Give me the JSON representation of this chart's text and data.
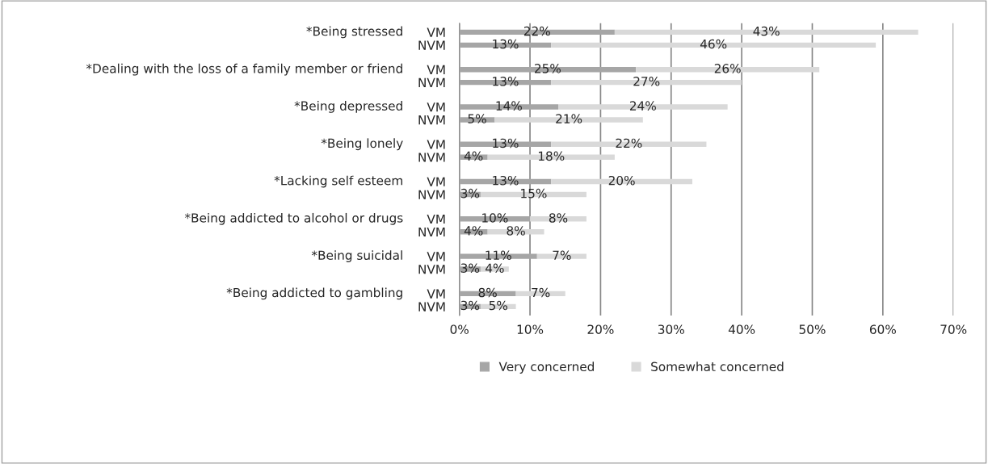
{
  "chart_data": {
    "type": "bar",
    "orientation": "horizontal",
    "stacked": true,
    "categories": [
      "VM",
      "NVM",
      "VM",
      "NVM",
      "VM",
      "NVM",
      "VM",
      "NVM",
      "VM",
      "NVM",
      "VM",
      "NVM",
      "VM",
      "NVM",
      "VM",
      "NVM"
    ],
    "series": [
      {
        "name": "Very concerned",
        "color": "#a6a6a6",
        "values": [
          22,
          13,
          25,
          13,
          14,
          5,
          13,
          4,
          13,
          3,
          10,
          4,
          11,
          3,
          8,
          3
        ],
        "value_labels": [
          "22%",
          "13%",
          "25%",
          "13%",
          "14%",
          "5%",
          "13%",
          "4%",
          "13%",
          "3%",
          "10%",
          "4%",
          "11%",
          "3%",
          "8%",
          "3%"
        ]
      },
      {
        "name": "Somewhat concerned",
        "color": "#d9d9d9",
        "values": [
          43,
          46,
          26,
          27,
          24,
          21,
          22,
          18,
          20,
          15,
          8,
          8,
          7,
          4,
          7,
          5
        ],
        "value_labels": [
          "43%",
          "46%",
          "26%",
          "27%",
          "24%",
          "21%",
          "22%",
          "18%",
          "20%",
          "15%",
          "8%",
          "8%",
          "7%",
          "4%",
          "7%",
          "5%"
        ]
      }
    ],
    "annotations": [
      "*Being stressed",
      "*Dealing with the loss of a family member or friend",
      "*Being depressed",
      "*Being lonely",
      "*Lacking self esteem",
      "*Being addicted to alcohol or drugs",
      "*Being suicidal",
      "*Being addicted to gambling"
    ],
    "xlim": [
      0,
      70
    ],
    "xticks": [
      {
        "value": 0,
        "label": "0%"
      },
      {
        "value": 10,
        "label": "10%"
      },
      {
        "value": 20,
        "label": "20%"
      },
      {
        "value": 30,
        "label": "30%"
      },
      {
        "value": 40,
        "label": "40%"
      },
      {
        "value": 50,
        "label": "50%"
      },
      {
        "value": 60,
        "label": "60%"
      },
      {
        "value": 70,
        "label": "70%"
      }
    ],
    "grid": "x",
    "legend": "bottom"
  }
}
